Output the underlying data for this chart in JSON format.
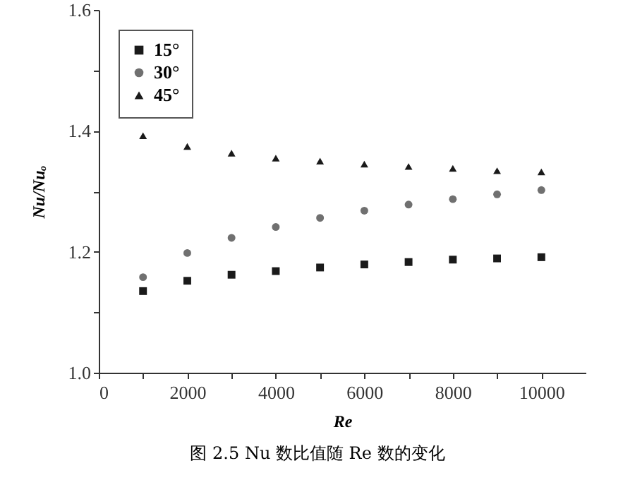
{
  "chart_data": {
    "type": "scatter",
    "xlabel": "Re",
    "ylabel": "Nu/Nuₒ",
    "annotations": [
      "图 2.5 Nu 数比值随 Re 数的变化"
    ],
    "x": [
      1000,
      2000,
      3000,
      4000,
      5000,
      6000,
      7000,
      8000,
      9000,
      10000
    ],
    "series": [
      {
        "name": "15°",
        "color": "#1a1a1a",
        "marker": "square",
        "values": [
          1.135,
          1.152,
          1.162,
          1.168,
          1.174,
          1.179,
          1.183,
          1.187,
          1.189,
          1.191
        ]
      },
      {
        "name": "30°",
        "color": "#707070",
        "marker": "circle",
        "values": [
          1.158,
          1.198,
          1.223,
          1.241,
          1.256,
          1.268,
          1.278,
          1.287,
          1.295,
          1.302
        ]
      },
      {
        "name": "45°",
        "color": "#1a1a1a",
        "marker": "triangle",
        "values": [
          1.392,
          1.374,
          1.363,
          1.355,
          1.35,
          1.345,
          1.341,
          1.338,
          1.334,
          1.332
        ]
      }
    ],
    "xlim": [
      0,
      11000
    ],
    "xticks": [
      0,
      {
        "value": 1000,
        "label": null
      },
      2000,
      {
        "value": 3000,
        "label": null
      },
      4000,
      {
        "value": 5000,
        "label": null
      },
      6000,
      {
        "value": 7000,
        "label": null
      },
      8000,
      {
        "value": 9000,
        "label": null
      },
      10000
    ],
    "ylim": [
      1.0,
      1.6
    ],
    "yticks": [
      {
        "value": 1.0,
        "label": "1.0"
      },
      {
        "value": 1.1,
        "label": null
      },
      1.2,
      {
        "value": 1.3,
        "label": null
      },
      1.4,
      {
        "value": 1.5,
        "label": null
      },
      1.6
    ],
    "grid": false,
    "legend": "top left"
  }
}
